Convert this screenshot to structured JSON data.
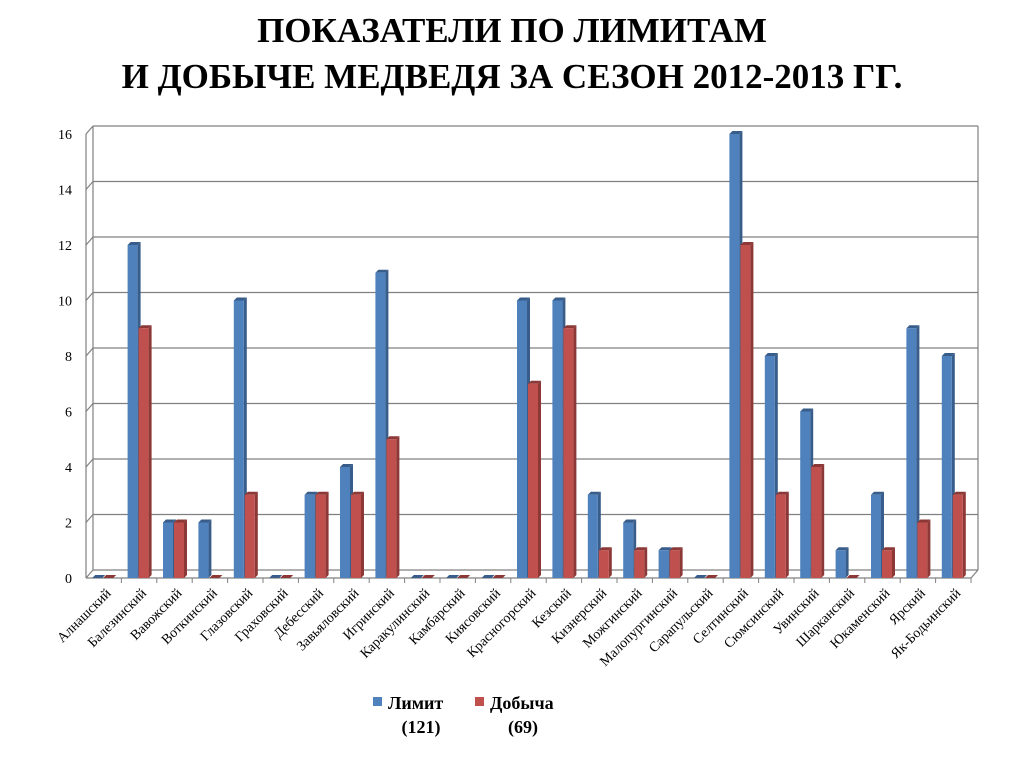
{
  "title": {
    "line1": "ПОКАЗАТЕЛИ ПО ЛИМИТАМ",
    "line2": "И ДОБЫЧЕ МЕДВЕДЯ ЗА СЕЗОН 2012-2013 ГГ."
  },
  "colors": {
    "limit": "#4F81BD",
    "limit_side": "#385D8A",
    "catch": "#C0504D",
    "catch_side": "#8C3836",
    "grid": "#808080",
    "axis": "#808080"
  },
  "chart_data": {
    "type": "bar",
    "title": "ПОКАЗАТЕЛИ ПО ЛИМИТАМ И ДОБЫЧЕ МЕДВЕДЯ ЗА СЕЗОН 2012-2013 ГГ.",
    "xlabel": "",
    "ylabel": "",
    "ylim": [
      0,
      16
    ],
    "yticks": [
      0,
      2,
      4,
      6,
      8,
      10,
      12,
      14,
      16
    ],
    "grid": true,
    "legend_position": "bottom",
    "categories": [
      "Алнашский",
      "Балезинский",
      "Вавожский",
      "Воткинский",
      "Глазовский",
      "Граховский",
      "Дебесский",
      "Завьяловский",
      "Игринский",
      "Каракулинский",
      "Камбарский",
      "Киясовский",
      "Красногорский",
      "Кезский",
      "Кизнерский",
      "Можгинский",
      "Малопургинский",
      "Сарапульский",
      "Селтинский",
      "Сюмсинский",
      "Увинский",
      "Шарканский",
      "Юкаменский",
      "Ярский",
      "Як-Бодьинский"
    ],
    "series": [
      {
        "name": "Лимит",
        "legend_total": "(121)",
        "values": [
          0,
          12,
          2,
          2,
          10,
          0,
          3,
          4,
          11,
          0,
          0,
          0,
          10,
          10,
          3,
          2,
          1,
          0,
          16,
          8,
          6,
          1,
          3,
          9,
          8
        ]
      },
      {
        "name": "Добыча",
        "legend_total": "(69)",
        "values": [
          0,
          9,
          2,
          0,
          3,
          0,
          3,
          3,
          5,
          0,
          0,
          0,
          7,
          9,
          1,
          1,
          1,
          0,
          12,
          3,
          4,
          0,
          1,
          2,
          3
        ]
      }
    ]
  }
}
